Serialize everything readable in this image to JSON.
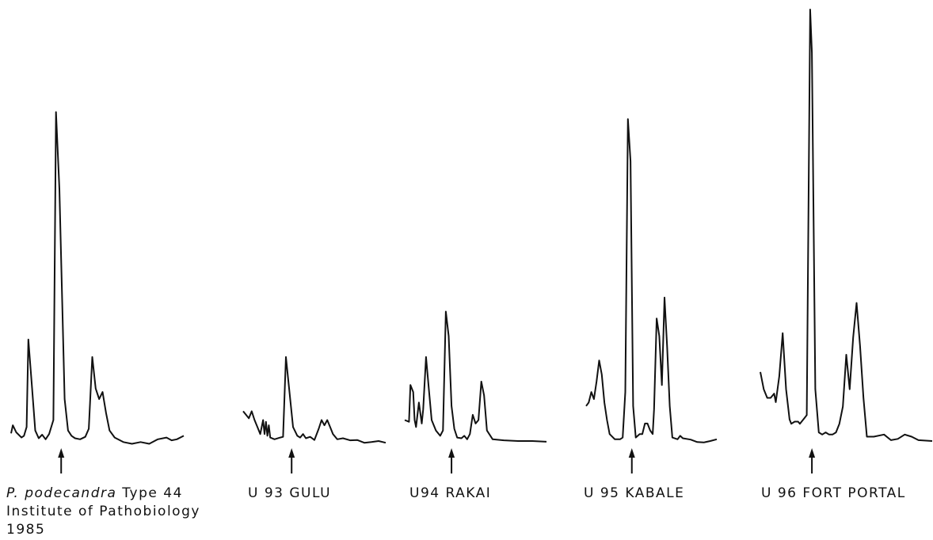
{
  "chart_data": {
    "type": "line",
    "panels": [
      {
        "caption": {
          "species": "P. podecandra",
          "rest": " Type 44",
          "line2": "Institute of Pathobiology",
          "line3": "1985"
        },
        "points": [
          [
            0,
            0.022
          ],
          [
            0.01,
            0.045
          ],
          [
            0.03,
            0.025
          ],
          [
            0.06,
            0.01
          ],
          [
            0.075,
            0.015
          ],
          [
            0.09,
            0.04
          ],
          [
            0.1,
            0.29
          ],
          [
            0.12,
            0.16
          ],
          [
            0.14,
            0.03
          ],
          [
            0.16,
            0.008
          ],
          [
            0.18,
            0.018
          ],
          [
            0.2,
            0.005
          ],
          [
            0.22,
            0.02
          ],
          [
            0.245,
            0.06
          ],
          [
            0.26,
            0.94
          ],
          [
            0.28,
            0.72
          ],
          [
            0.31,
            0.12
          ],
          [
            0.33,
            0.03
          ],
          [
            0.35,
            0.015
          ],
          [
            0.37,
            0.008
          ],
          [
            0.4,
            0.005
          ],
          [
            0.43,
            0.012
          ],
          [
            0.45,
            0.035
          ],
          [
            0.47,
            0.24
          ],
          [
            0.49,
            0.15
          ],
          [
            0.51,
            0.12
          ],
          [
            0.53,
            0.14
          ],
          [
            0.55,
            0.08
          ],
          [
            0.57,
            0.03
          ],
          [
            0.6,
            0.01
          ],
          [
            0.65,
            -0.003
          ],
          [
            0.7,
            -0.008
          ],
          [
            0.75,
            -0.003
          ],
          [
            0.8,
            -0.008
          ],
          [
            0.85,
            0.005
          ],
          [
            0.9,
            0.01
          ],
          [
            0.93,
            0.002
          ],
          [
            0.96,
            0.005
          ],
          [
            1,
            0.015
          ]
        ],
        "arrow_x": 0.29
      },
      {
        "caption": {
          "text": "U 93  GULU"
        },
        "points": [
          [
            0,
            0.085
          ],
          [
            0.04,
            0.065
          ],
          [
            0.06,
            0.085
          ],
          [
            0.08,
            0.06
          ],
          [
            0.1,
            0.04
          ],
          [
            0.12,
            0.02
          ],
          [
            0.14,
            0.06
          ],
          [
            0.15,
            0.02
          ],
          [
            0.16,
            0.055
          ],
          [
            0.17,
            0.015
          ],
          [
            0.18,
            0.045
          ],
          [
            0.19,
            0.01
          ],
          [
            0.22,
            0.005
          ],
          [
            0.26,
            0.01
          ],
          [
            0.28,
            0.012
          ],
          [
            0.3,
            0.24
          ],
          [
            0.32,
            0.16
          ],
          [
            0.35,
            0.04
          ],
          [
            0.38,
            0.015
          ],
          [
            0.4,
            0.01
          ],
          [
            0.42,
            0.02
          ],
          [
            0.44,
            0.008
          ],
          [
            0.47,
            0.012
          ],
          [
            0.5,
            0.003
          ],
          [
            0.53,
            0.035
          ],
          [
            0.55,
            0.06
          ],
          [
            0.57,
            0.045
          ],
          [
            0.59,
            0.06
          ],
          [
            0.61,
            0.04
          ],
          [
            0.63,
            0.02
          ],
          [
            0.66,
            0.005
          ],
          [
            0.7,
            0.008
          ],
          [
            0.75,
            0.002
          ],
          [
            0.8,
            0.003
          ],
          [
            0.85,
            -0.005
          ],
          [
            0.9,
            -0.003
          ],
          [
            0.95,
            0.0
          ],
          [
            1,
            -0.005
          ]
        ],
        "arrow_x": 0.34
      },
      {
        "caption": {
          "text": "U94  RAKAI"
        },
        "points": [
          [
            0,
            0.06
          ],
          [
            0.03,
            0.055
          ],
          [
            0.04,
            0.16
          ],
          [
            0.06,
            0.14
          ],
          [
            0.07,
            0.06
          ],
          [
            0.08,
            0.04
          ],
          [
            0.1,
            0.11
          ],
          [
            0.12,
            0.05
          ],
          [
            0.13,
            0.09
          ],
          [
            0.15,
            0.24
          ],
          [
            0.17,
            0.15
          ],
          [
            0.19,
            0.06
          ],
          [
            0.22,
            0.03
          ],
          [
            0.25,
            0.015
          ],
          [
            0.27,
            0.03
          ],
          [
            0.29,
            0.37
          ],
          [
            0.31,
            0.3
          ],
          [
            0.33,
            0.1
          ],
          [
            0.35,
            0.035
          ],
          [
            0.37,
            0.01
          ],
          [
            0.4,
            0.008
          ],
          [
            0.42,
            0.015
          ],
          [
            0.44,
            0.005
          ],
          [
            0.46,
            0.02
          ],
          [
            0.48,
            0.075
          ],
          [
            0.5,
            0.05
          ],
          [
            0.52,
            0.06
          ],
          [
            0.54,
            0.17
          ],
          [
            0.56,
            0.13
          ],
          [
            0.58,
            0.03
          ],
          [
            0.62,
            0.005
          ],
          [
            0.7,
            0.002
          ],
          [
            0.8,
            0.0
          ],
          [
            0.9,
            0.0
          ],
          [
            1,
            -0.002
          ]
        ],
        "arrow_x": 0.33
      },
      {
        "caption": {
          "text": "U 95  KABALE"
        },
        "points": [
          [
            0,
            0.1
          ],
          [
            0.02,
            0.11
          ],
          [
            0.04,
            0.14
          ],
          [
            0.06,
            0.12
          ],
          [
            0.08,
            0.17
          ],
          [
            0.1,
            0.23
          ],
          [
            0.12,
            0.19
          ],
          [
            0.14,
            0.11
          ],
          [
            0.16,
            0.06
          ],
          [
            0.18,
            0.02
          ],
          [
            0.22,
            0.005
          ],
          [
            0.26,
            0.005
          ],
          [
            0.28,
            0.01
          ],
          [
            0.3,
            0.14
          ],
          [
            0.32,
            0.92
          ],
          [
            0.34,
            0.8
          ],
          [
            0.36,
            0.1
          ],
          [
            0.38,
            0.01
          ],
          [
            0.41,
            0.02
          ],
          [
            0.43,
            0.02
          ],
          [
            0.45,
            0.05
          ],
          [
            0.47,
            0.05
          ],
          [
            0.49,
            0.03
          ],
          [
            0.51,
            0.02
          ],
          [
            0.52,
            0.09
          ],
          [
            0.54,
            0.35
          ],
          [
            0.56,
            0.3
          ],
          [
            0.58,
            0.16
          ],
          [
            0.6,
            0.41
          ],
          [
            0.62,
            0.27
          ],
          [
            0.64,
            0.1
          ],
          [
            0.66,
            0.01
          ],
          [
            0.7,
            0.005
          ],
          [
            0.72,
            0.015
          ],
          [
            0.74,
            0.008
          ],
          [
            0.8,
            0.004
          ],
          [
            0.85,
            -0.003
          ],
          [
            0.9,
            -0.004
          ],
          [
            0.95,
            0.0
          ],
          [
            1,
            0.005
          ]
        ],
        "arrow_x": 0.35
      },
      {
        "caption": {
          "text": "U 96  FORT PORTAL"
        },
        "points": [
          [
            0,
            0.16
          ],
          [
            0.02,
            0.12
          ],
          [
            0.04,
            0.1
          ],
          [
            0.06,
            0.1
          ],
          [
            0.08,
            0.11
          ],
          [
            0.09,
            0.09
          ],
          [
            0.11,
            0.15
          ],
          [
            0.13,
            0.25
          ],
          [
            0.15,
            0.12
          ],
          [
            0.17,
            0.05
          ],
          [
            0.18,
            0.04
          ],
          [
            0.2,
            0.045
          ],
          [
            0.22,
            0.045
          ],
          [
            0.23,
            0.04
          ],
          [
            0.25,
            0.05
          ],
          [
            0.27,
            0.06
          ],
          [
            0.29,
            1.0
          ],
          [
            0.3,
            0.9
          ],
          [
            0.32,
            0.12
          ],
          [
            0.34,
            0.02
          ],
          [
            0.36,
            0.015
          ],
          [
            0.38,
            0.02
          ],
          [
            0.4,
            0.015
          ],
          [
            0.42,
            0.015
          ],
          [
            0.44,
            0.02
          ],
          [
            0.46,
            0.04
          ],
          [
            0.48,
            0.08
          ],
          [
            0.5,
            0.2
          ],
          [
            0.52,
            0.12
          ],
          [
            0.54,
            0.24
          ],
          [
            0.56,
            0.32
          ],
          [
            0.58,
            0.22
          ],
          [
            0.6,
            0.1
          ],
          [
            0.62,
            0.01
          ],
          [
            0.66,
            0.01
          ],
          [
            0.72,
            0.015
          ],
          [
            0.76,
            0.002
          ],
          [
            0.8,
            0.005
          ],
          [
            0.84,
            0.015
          ],
          [
            0.88,
            0.01
          ],
          [
            0.92,
            0.002
          ],
          [
            1,
            0.0
          ]
        ],
        "arrow_x": 0.3
      }
    ]
  }
}
